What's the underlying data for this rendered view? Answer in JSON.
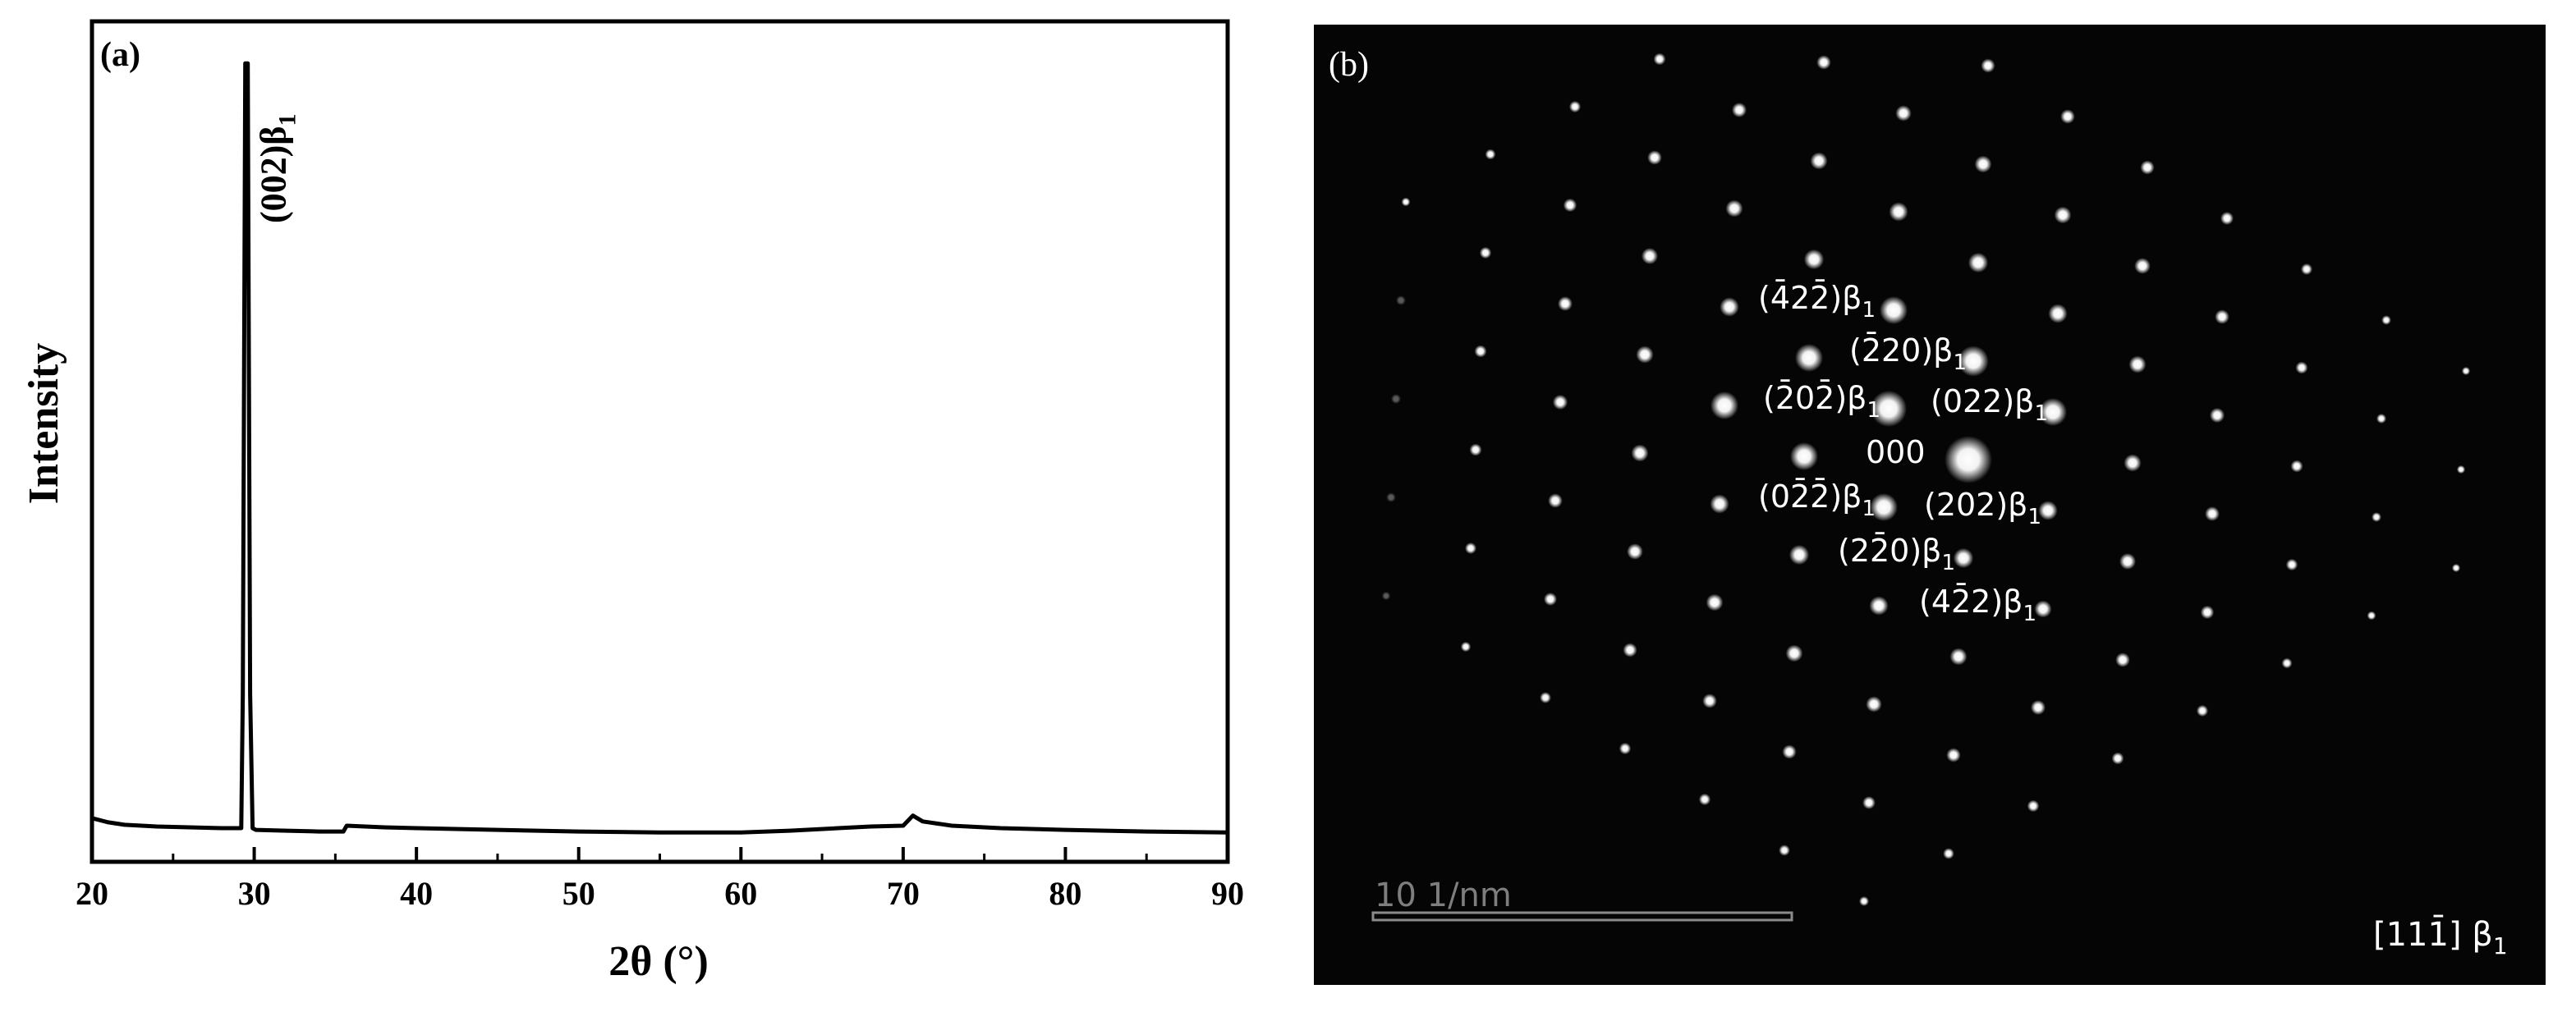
{
  "chart_data": [
    {
      "type": "line",
      "panel_label": "(a)",
      "xlabel": "2θ (°)",
      "ylabel": "Intensity",
      "xlim": [
        20,
        90
      ],
      "ylim": [
        0,
        100
      ],
      "xticks": [
        20,
        30,
        40,
        50,
        60,
        70,
        80,
        90
      ],
      "x_minor_ticks": [
        25,
        35,
        45,
        55,
        65,
        75,
        85
      ],
      "y_ticks_shown": false,
      "grid": false,
      "series": [
        {
          "x": [
            20,
            21,
            22,
            24,
            26,
            28,
            29.2,
            29.3,
            29.45,
            29.6,
            29.75,
            29.9,
            30.1,
            32,
            34,
            35.5,
            35.7,
            38,
            40,
            45,
            50,
            55,
            60,
            63,
            66,
            68,
            70,
            70.6,
            71.2,
            73,
            76,
            80,
            85,
            90
          ],
          "y": [
            5.2,
            4.7,
            4.4,
            4.2,
            4.1,
            4.0,
            4.0,
            20.0,
            95.0,
            95.0,
            20.0,
            4.0,
            3.8,
            3.7,
            3.6,
            3.6,
            4.3,
            4.1,
            4.0,
            3.8,
            3.6,
            3.5,
            3.5,
            3.7,
            4.0,
            4.2,
            4.3,
            5.5,
            4.8,
            4.3,
            4.0,
            3.8,
            3.6,
            3.5
          ]
        }
      ],
      "annotations": [
        {
          "text": "(002)β",
          "subscript": "1",
          "x": 29.5,
          "rotated": true
        }
      ]
    },
    {
      "type": "diffraction_pattern",
      "panel_label": "(b)",
      "zone_axis": "[111̄] β",
      "zone_axis_subscript": "1",
      "scale_bar_label": "10 1/nm",
      "spots": [
        {
          "h": 0,
          "k": 0,
          "l": 0,
          "label": "000",
          "subscript": ""
        },
        {
          "h": 0,
          "k": 2,
          "l": 2,
          "label": "(022)β",
          "subscript": "1"
        },
        {
          "h": 2,
          "k": 0,
          "l": 2,
          "label": "(202)β",
          "subscript": "1"
        },
        {
          "h": 2,
          "k": -2,
          "l": 0,
          "label": "(22̄0)β",
          "subscript": "1"
        },
        {
          "h": 0,
          "k": -2,
          "l": -2,
          "label": "(02̄2̄)β",
          "subscript": "1"
        },
        {
          "h": -2,
          "k": 0,
          "l": -2,
          "label": "(2̄02̄)β",
          "subscript": "1"
        },
        {
          "h": -2,
          "k": 2,
          "l": 0,
          "label": "(2̄20)β",
          "subscript": "1"
        },
        {
          "h": 4,
          "k": -2,
          "l": 2,
          "label": "(42̄2)β",
          "subscript": "1"
        },
        {
          "h": -4,
          "k": 2,
          "l": -2,
          "label": "(4̄22̄)β",
          "subscript": "1"
        }
      ]
    }
  ]
}
